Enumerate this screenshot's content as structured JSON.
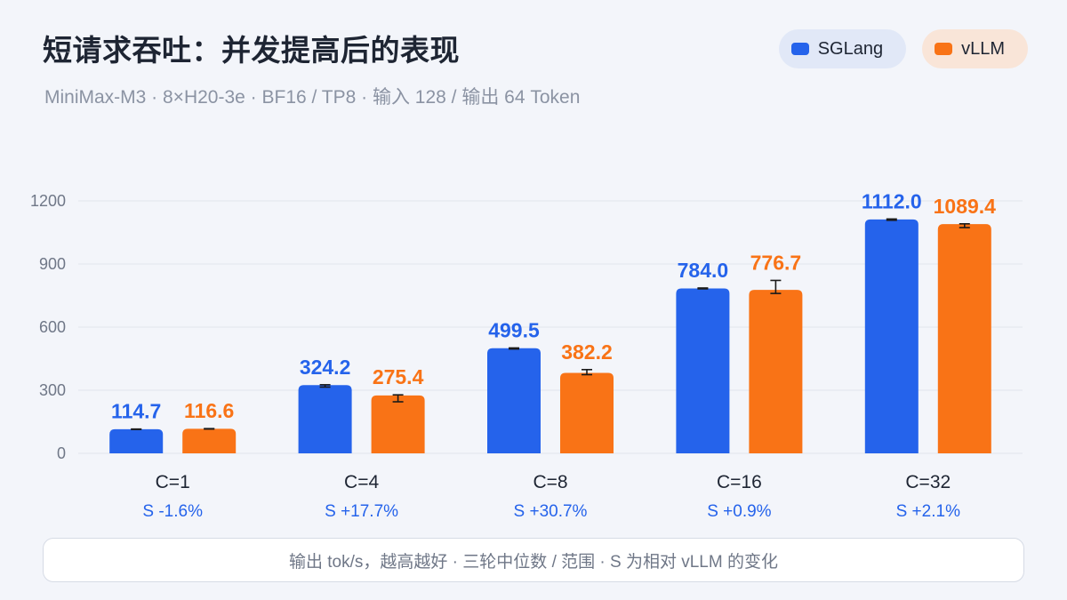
{
  "header": {
    "title": "短请求吞吐：并发提高后的表现",
    "subtitle": "MiniMax-M3  ·  8×H20-3e  ·  BF16 / TP8  ·  输入 128 / 输出 64 Token"
  },
  "colors": {
    "sglang": "#2563eb",
    "vllm": "#f97316",
    "grid": "#e1e5ec",
    "axis_text": "#6f7787",
    "category_text": "#1e2533"
  },
  "footer": {
    "note": "输出 tok/s，越高越好  ·  三轮中位数 / 范围  ·  S 为相对 vLLM 的变化"
  },
  "chart_data": {
    "type": "bar",
    "categories": [
      "C=1",
      "C=4",
      "C=8",
      "C=16",
      "C=32"
    ],
    "series": [
      {
        "name": "SGLang",
        "values": [
          114.7,
          324.2,
          499.5,
          784.0,
          1112.0
        ],
        "labels": [
          "114.7",
          "324.2",
          "499.5",
          "784.0",
          "1112.0"
        ],
        "error_low": [
          113.5,
          315,
          496,
          782,
          1108
        ],
        "error_high": [
          115.5,
          326,
          501,
          786,
          1114
        ]
      },
      {
        "name": "vLLM",
        "values": [
          116.6,
          275.4,
          382.2,
          776.7,
          1089.4
        ],
        "labels": [
          "116.6",
          "275.4",
          "382.2",
          "776.7",
          "1089.4"
        ],
        "error_low": [
          115.5,
          245,
          374,
          760,
          1073
        ],
        "error_high": [
          117.5,
          278,
          398,
          822,
          1091
        ]
      }
    ],
    "deltas": [
      "S -1.6%",
      "S +17.7%",
      "S +30.7%",
      "S +0.9%",
      "S +2.1%"
    ],
    "ylim": [
      0,
      1200
    ],
    "yticks": [
      0,
      300,
      600,
      900,
      1200
    ],
    "grid": true,
    "legend": "top-right"
  }
}
